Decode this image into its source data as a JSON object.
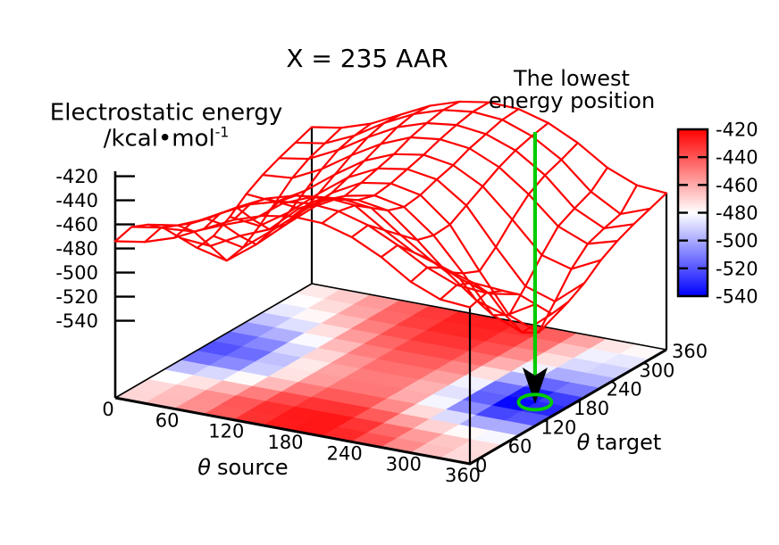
{
  "chart_data": {
    "type": "surface3d-heatmap",
    "title": "X = 235 AAR",
    "x_axis": {
      "symbol": "θ",
      "label": "source",
      "ticks": [
        0,
        60,
        120,
        180,
        240,
        300,
        360
      ],
      "range": [
        0,
        360
      ]
    },
    "y_axis": {
      "symbol": "θ",
      "label": "target",
      "ticks": [
        0,
        60,
        120,
        180,
        240,
        300,
        360
      ],
      "range": [
        0,
        360
      ]
    },
    "z_axis": {
      "title_line1": "Electrostatic energy",
      "title_line2": "/kcal•mol",
      "title_line2_sup": "-1",
      "ticks": [
        -420,
        -440,
        -460,
        -480,
        -500,
        -520,
        -540
      ]
    },
    "colorbar": {
      "ticks": [
        -420,
        -440,
        -460,
        -480,
        -500,
        -520,
        -540
      ],
      "range": [
        -540,
        -420
      ],
      "high_color": "#ff0000",
      "mid_color": "#ffffff",
      "low_color": "#0000ff"
    },
    "annotation": {
      "line1": "The lowest",
      "line2": "energy position"
    },
    "lowest_point": {
      "theta_source": 330,
      "theta_target": 180,
      "z": -547
    },
    "grid_step_deg": 30,
    "mesh_color": "#ff0000",
    "marker_color": "#00cc00",
    "z_values": [
      [
        -474,
        -470,
        -462,
        -450,
        -438,
        -430,
        -426,
        -427,
        -434,
        -446,
        -462,
        -472,
        -474
      ],
      [
        -470,
        -466,
        -458,
        -445,
        -433,
        -426,
        -423,
        -425,
        -432,
        -444,
        -458,
        -468,
        -470
      ],
      [
        -476,
        -472,
        -462,
        -448,
        -436,
        -429,
        -426,
        -428,
        -444,
        -458,
        -466,
        -474,
        -476
      ],
      [
        -487,
        -485,
        -475,
        -466,
        -448,
        -438,
        -435,
        -438,
        -456,
        -472,
        -483,
        -491,
        -487
      ],
      [
        -503,
        -505,
        -492,
        -482,
        -460,
        -448,
        -444,
        -448,
        -468,
        -490,
        -509,
        -517,
        -503
      ],
      [
        -519,
        -525,
        -507,
        -486,
        -466,
        -453,
        -448,
        -453,
        -472,
        -499,
        -529,
        -539,
        -519
      ],
      [
        -517,
        -522,
        -503,
        -483,
        -463,
        -450,
        -446,
        -451,
        -471,
        -505,
        -537,
        -547,
        -517
      ],
      [
        -509,
        -512,
        -496,
        -476,
        -458,
        -446,
        -442,
        -446,
        -463,
        -493,
        -521,
        -529,
        -509
      ],
      [
        -498,
        -500,
        -486,
        -468,
        -452,
        -442,
        -438,
        -442,
        -455,
        -478,
        -503,
        -510,
        -498
      ],
      [
        -490,
        -488,
        -476,
        -460,
        -446,
        -436,
        -433,
        -436,
        -447,
        -465,
        -487,
        -497,
        -490
      ],
      [
        -484,
        -480,
        -468,
        -453,
        -440,
        -432,
        -429,
        -432,
        -441,
        -457,
        -480,
        -492,
        -484
      ],
      [
        -479,
        -475,
        -464,
        -449,
        -437,
        -429,
        -426,
        -428,
        -437,
        -452,
        -474,
        -488,
        -479
      ],
      [
        -474,
        -470,
        -462,
        -450,
        -438,
        -430,
        -426,
        -427,
        -434,
        -446,
        -462,
        -472,
        -474
      ]
    ]
  }
}
